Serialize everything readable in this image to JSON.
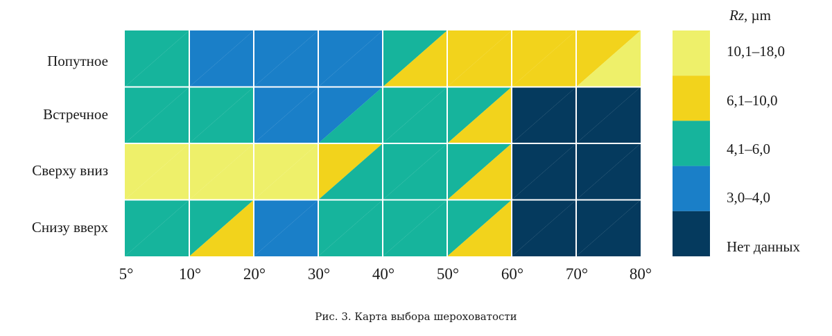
{
  "chart_data": {
    "type": "heatmap",
    "title": "",
    "x_tick_labels": [
      "5°",
      "10°",
      "20°",
      "30°",
      "40°",
      "50°",
      "60°",
      "70°",
      "80°"
    ],
    "rows": [
      "Попутное",
      "Встречное",
      "Сверху вниз",
      "Снизу вверх"
    ],
    "legend": {
      "title_symbol": "Rz",
      "title_unit": ", µm",
      "classes": [
        {
          "label": "10,1–18,0",
          "color": "#eef06a"
        },
        {
          "label": "6,1–10,0",
          "color": "#f2d31c"
        },
        {
          "label": "4,1–6,0",
          "color": "#16b49c"
        },
        {
          "label": "3,0–4,0",
          "color": "#1a7fc8"
        },
        {
          "label": "Нет данных",
          "color": "#053a5e"
        }
      ]
    },
    "cells_note_order": "each cell: [top-left class, bottom-right class]; classes indexed into legend.classes",
    "cells": [
      [
        [
          2,
          2
        ],
        [
          3,
          3
        ],
        [
          3,
          3
        ],
        [
          3,
          3
        ],
        [
          2,
          1
        ],
        [
          1,
          1
        ],
        [
          1,
          1
        ],
        [
          1,
          0
        ]
      ],
      [
        [
          2,
          2
        ],
        [
          2,
          2
        ],
        [
          3,
          3
        ],
        [
          3,
          2
        ],
        [
          2,
          2
        ],
        [
          2,
          1
        ],
        [
          4,
          4
        ],
        [
          4,
          4
        ]
      ],
      [
        [
          0,
          0
        ],
        [
          0,
          0
        ],
        [
          0,
          0
        ],
        [
          1,
          2
        ],
        [
          2,
          2
        ],
        [
          2,
          1
        ],
        [
          4,
          4
        ],
        [
          4,
          4
        ]
      ],
      [
        [
          2,
          2
        ],
        [
          2,
          1
        ],
        [
          3,
          3
        ],
        [
          2,
          2
        ],
        [
          2,
          2
        ],
        [
          2,
          1
        ],
        [
          4,
          4
        ],
        [
          4,
          4
        ]
      ]
    ]
  },
  "caption": "Рис. 3. Карта выбора шероховатости"
}
